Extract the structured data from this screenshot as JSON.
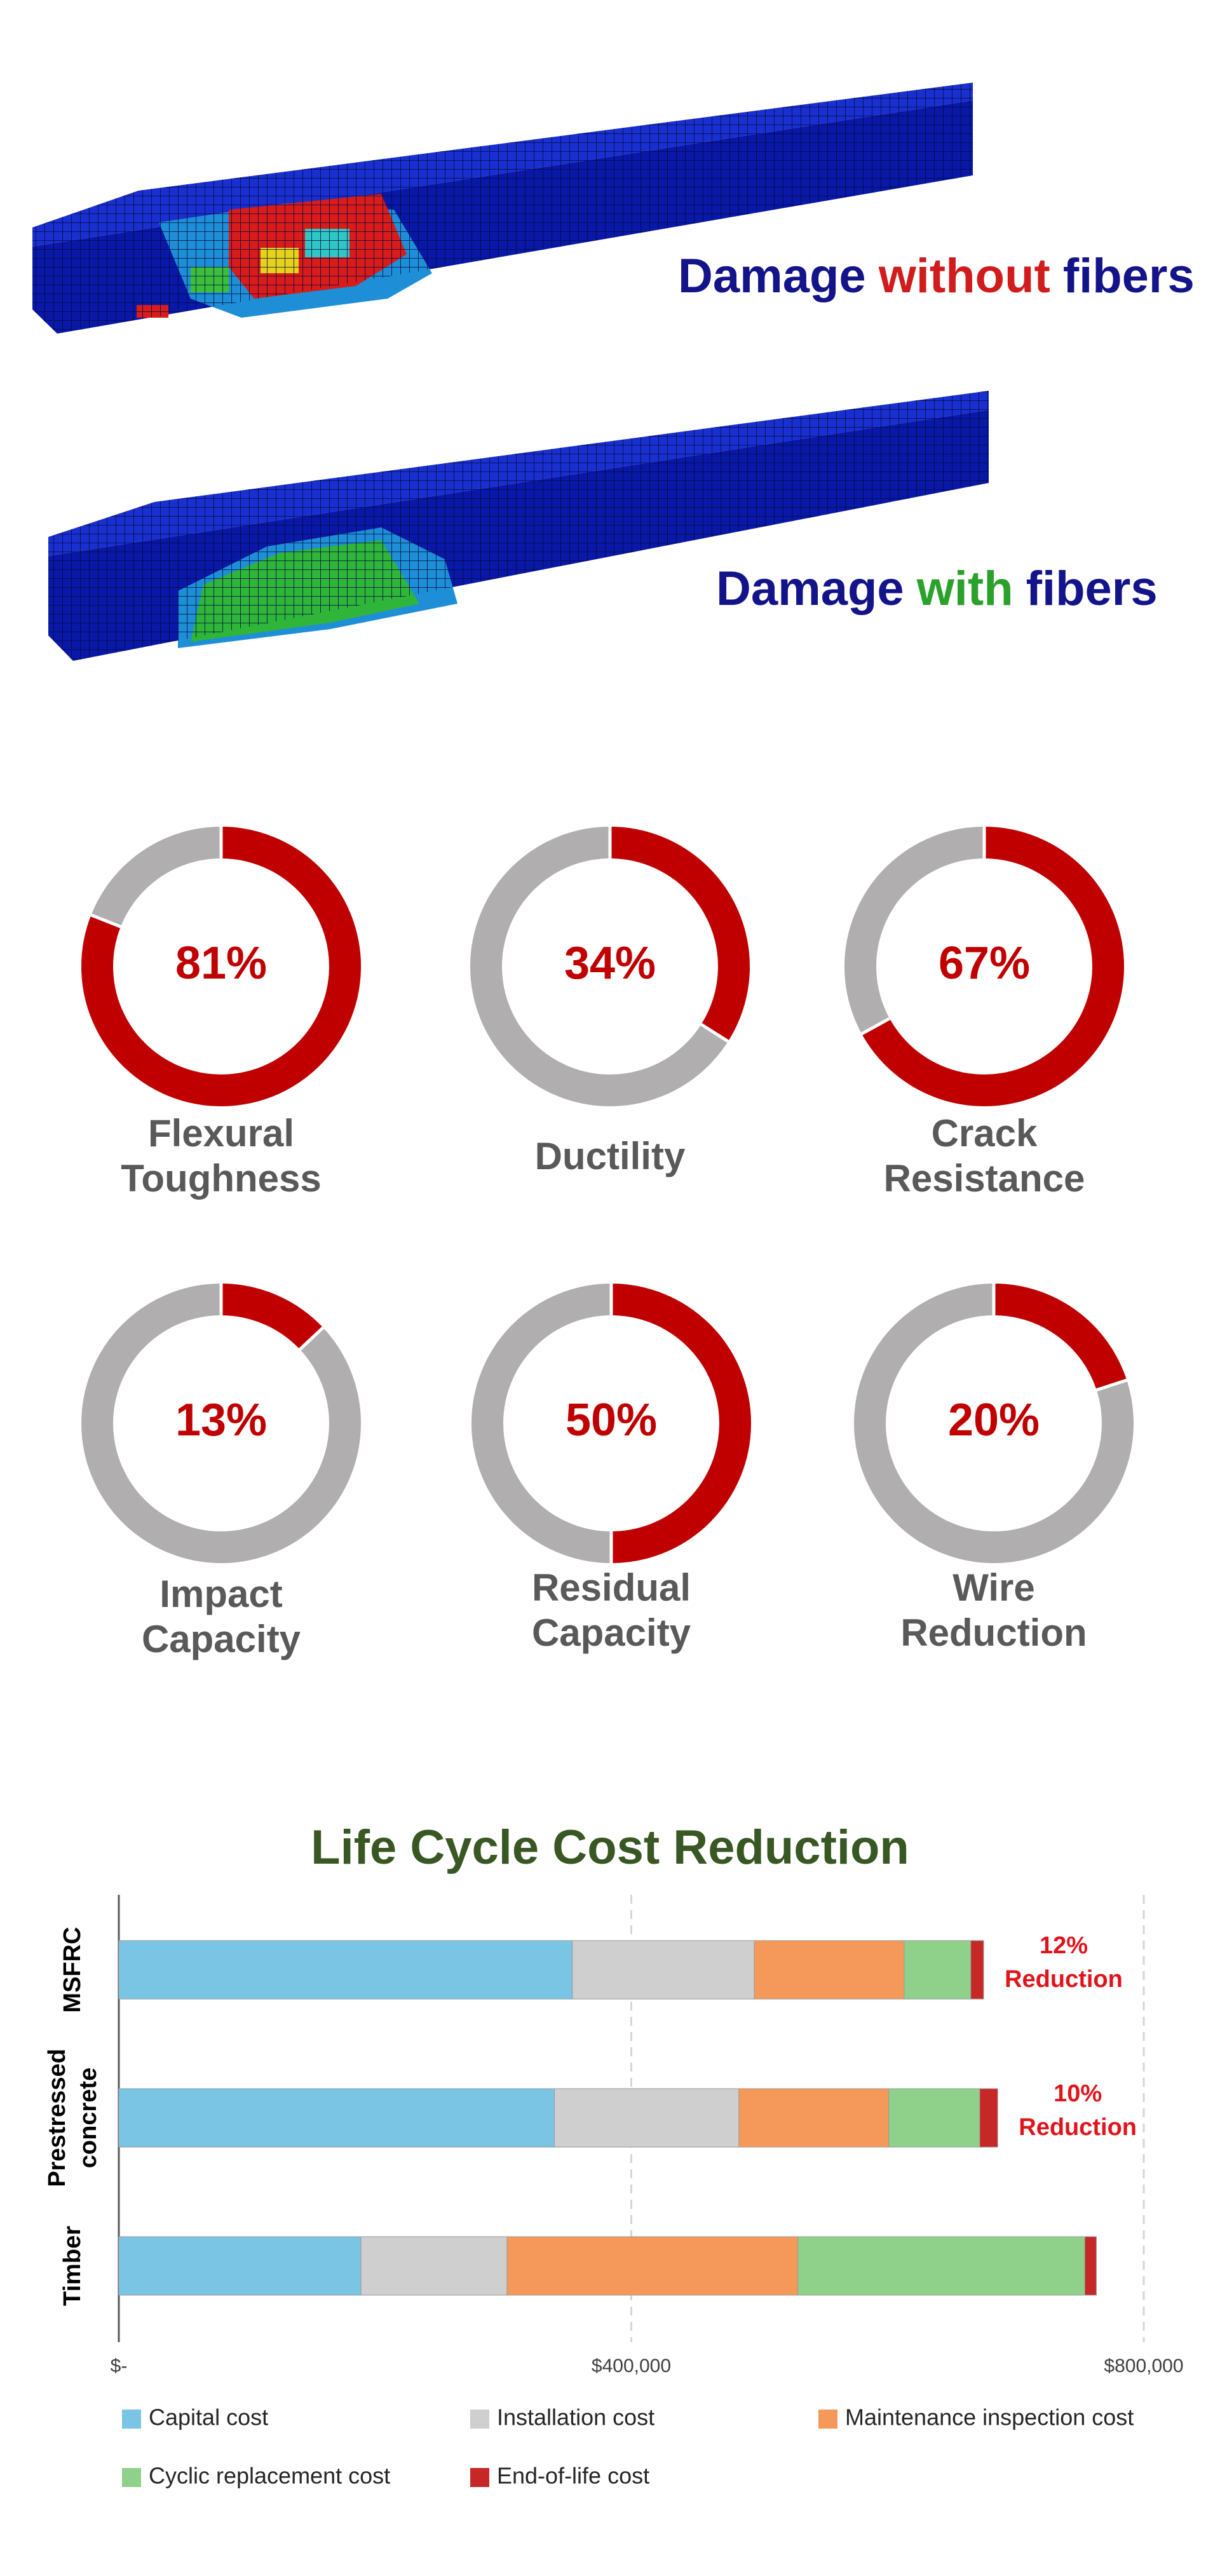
{
  "figures": [
    {
      "damage": "Damage",
      "qualifier": "without",
      "fibers": "fibers"
    },
    {
      "damage": "Damage",
      "qualifier": "with",
      "fibers": "fibers"
    }
  ],
  "chart_data": [
    {
      "type": "donut",
      "title": "Flexural Toughness",
      "values": [
        81
      ],
      "value_labels": [
        "81%"
      ],
      "color": "#c00000",
      "track_color": "#b0aeae"
    },
    {
      "type": "donut",
      "title": "Ductility",
      "values": [
        34
      ],
      "value_labels": [
        "34%"
      ],
      "color": "#c00000",
      "track_color": "#b0aeae"
    },
    {
      "type": "donut",
      "title": "Crack Resistance",
      "values": [
        67
      ],
      "value_labels": [
        "67%"
      ],
      "color": "#c00000",
      "track_color": "#b0aeae"
    },
    {
      "type": "donut",
      "title": "Impact Capacity",
      "values": [
        13
      ],
      "value_labels": [
        "13%"
      ],
      "color": "#c00000",
      "track_color": "#b0aeae"
    },
    {
      "type": "donut",
      "title": "Residual Capacity",
      "values": [
        50
      ],
      "value_labels": [
        "50%"
      ],
      "color": "#c00000",
      "track_color": "#b0aeae"
    },
    {
      "type": "donut",
      "title": "Wire Reduction",
      "values": [
        20
      ],
      "value_labels": [
        "20%"
      ],
      "color": "#c00000",
      "track_color": "#b0aeae"
    },
    {
      "type": "bar",
      "orientation": "horizontal",
      "stacked": true,
      "title": "Life Cycle Cost Reduction",
      "categories": [
        "MSFRC",
        "Prestressed concrete",
        "Timber"
      ],
      "series": [
        {
          "name": "Capital cost",
          "color": "#7ac4e4",
          "values": [
            354000,
            340000,
            189000
          ]
        },
        {
          "name": "Installation cost",
          "color": "#d0cfcf",
          "values": [
            142000,
            144000,
            114000
          ]
        },
        {
          "name": "Maintenance inspection cost",
          "color": "#f4995a",
          "values": [
            117000,
            117000,
            227000
          ]
        },
        {
          "name": "Cyclic replacement cost",
          "color": "#8fd18a",
          "values": [
            52000,
            71000,
            224000
          ]
        },
        {
          "name": "End-of-life cost",
          "color": "#c62828",
          "values": [
            10000,
            14000,
            9000
          ]
        }
      ],
      "annotations": [
        [
          "12%",
          "Reduction"
        ],
        [
          "10%",
          "Reduction"
        ],
        null
      ],
      "xlim": [
        0,
        800000
      ],
      "xticks": [
        {
          "value": 0,
          "label": "$-"
        },
        {
          "value": 400000,
          "label": "$400,000"
        },
        {
          "value": 800000,
          "label": "$800,000"
        }
      ],
      "grid": true
    }
  ]
}
